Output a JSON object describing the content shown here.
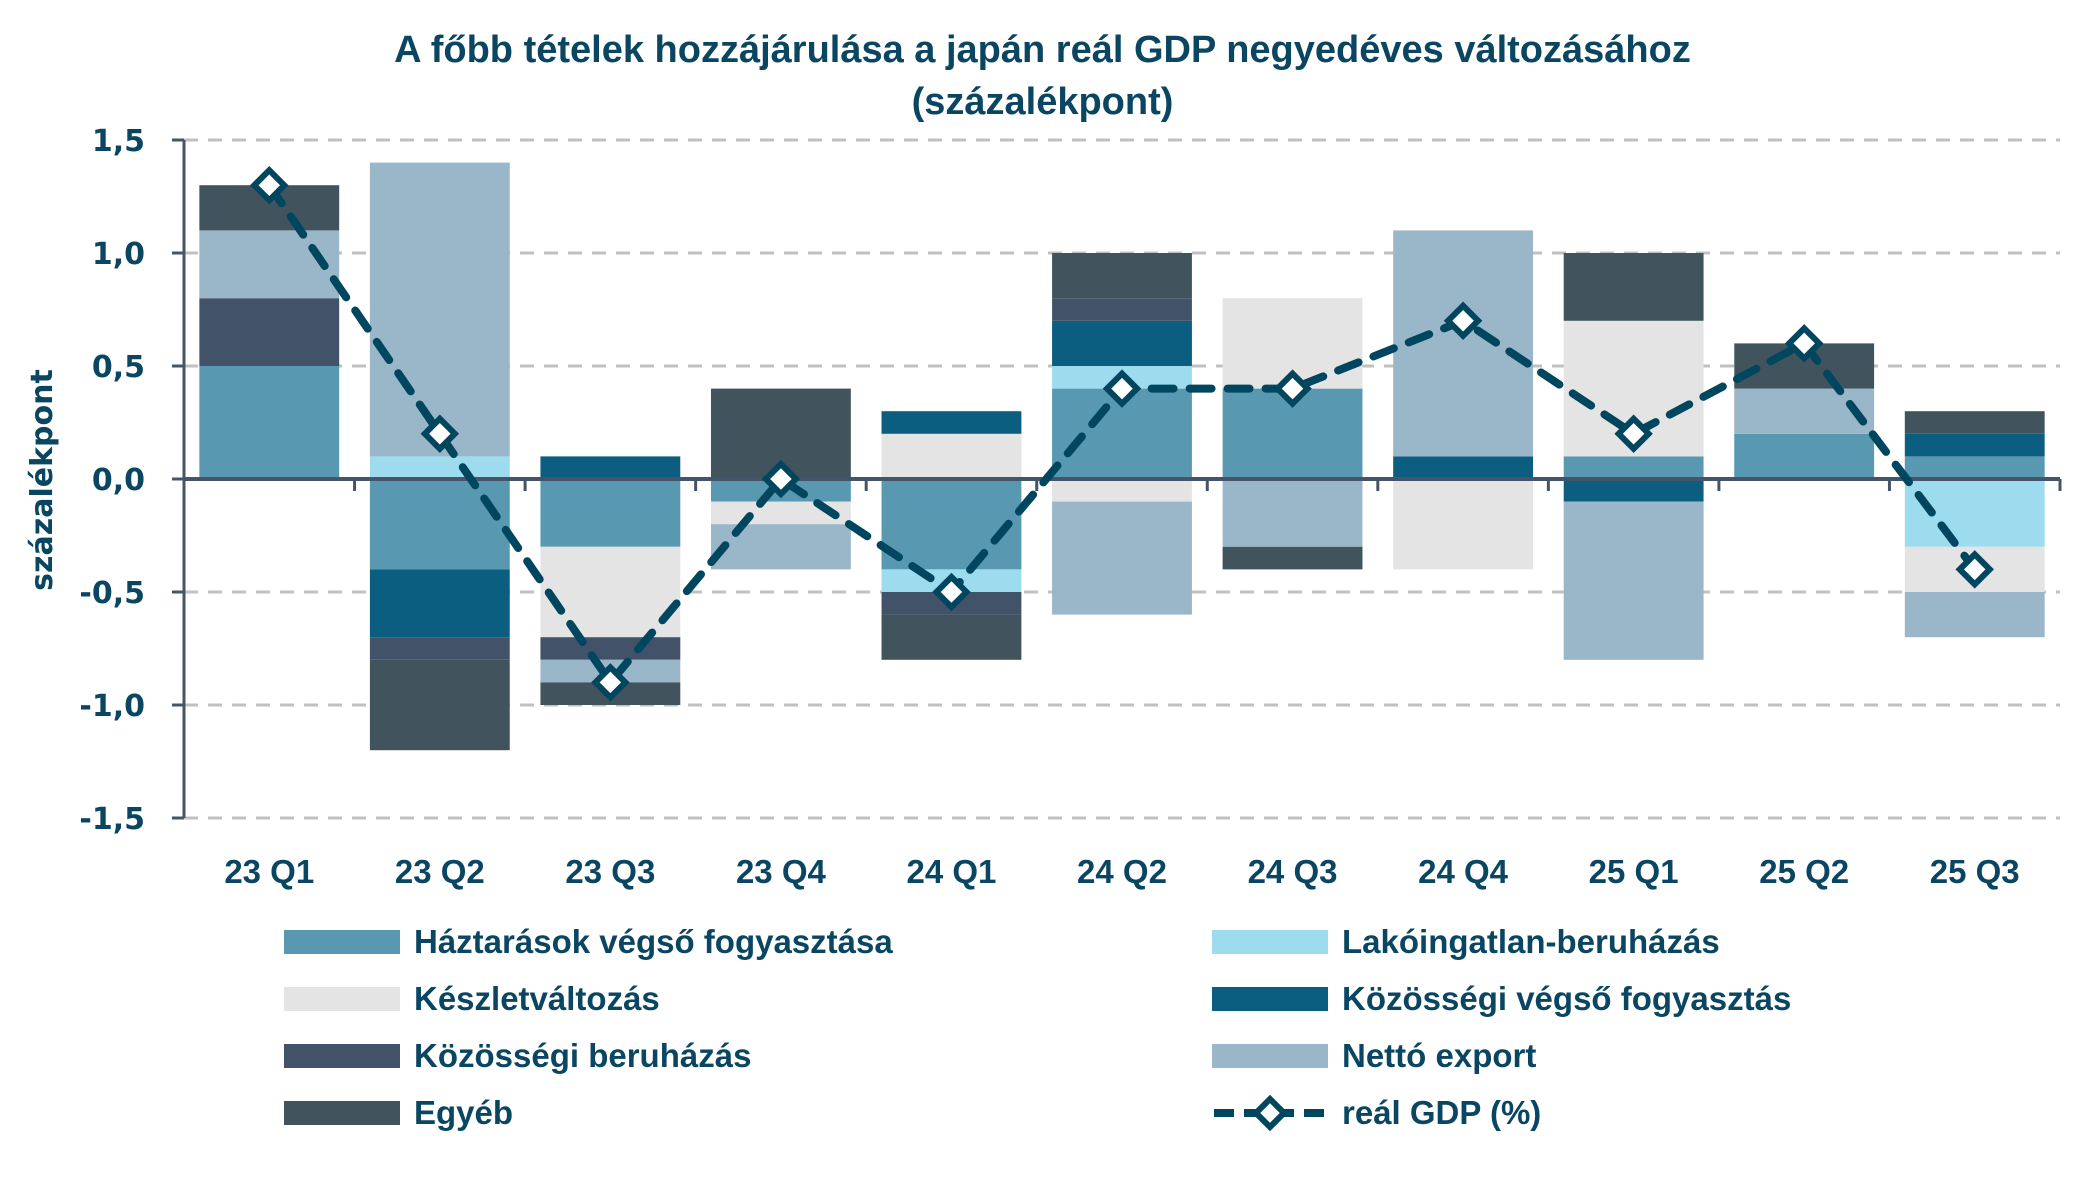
{
  "title_line1": "A főbb tételek hozzájárulása a japán reál GDP negyedéves változásához",
  "title_line2": "(százalékpont)",
  "chart_data": {
    "type": "bar",
    "stacked": true,
    "title": "A főbb tételek hozzájárulása a japán reál GDP negyedéves változásához (százalékpont)",
    "xlabel": "",
    "ylabel": "százalékpont",
    "ylim": [
      -1.5,
      1.5
    ],
    "yticks": [
      1.5,
      1.0,
      0.5,
      0.0,
      -0.5,
      -1.0,
      -1.5
    ],
    "ytick_labels": [
      "1,5",
      "1,0",
      "0,5",
      "0,0",
      "-0,5",
      "-1,0",
      "-1,5"
    ],
    "grid": "horizontal dashed",
    "legend_position": "bottom",
    "categories": [
      "23 Q1",
      "23 Q2",
      "23 Q3",
      "23 Q4",
      "24 Q1",
      "24 Q2",
      "24 Q3",
      "24 Q4",
      "25 Q1",
      "25 Q2",
      "25 Q3"
    ],
    "series": [
      {
        "name": "Háztarások végső fogyasztása",
        "color": "#5898b0",
        "values": [
          0.5,
          -0.4,
          -0.3,
          -0.1,
          -0.4,
          0.4,
          0.4,
          0.0,
          0.1,
          0.2,
          0.1
        ]
      },
      {
        "name": "Lakóingatlan-beruházás",
        "color": "#9cdcee",
        "values": [
          0.0,
          0.1,
          0.0,
          0.0,
          -0.1,
          0.1,
          0.0,
          0.0,
          0.0,
          0.0,
          -0.3
        ]
      },
      {
        "name": "Készletváltozás",
        "color": "#e4e4e4",
        "values": [
          0.0,
          0.0,
          -0.4,
          -0.1,
          0.2,
          -0.1,
          0.4,
          -0.4,
          0.6,
          0.0,
          -0.2
        ]
      },
      {
        "name": "Közösségi végső fogyasztás",
        "color": "#0b5e80",
        "values": [
          0.0,
          -0.3,
          0.1,
          0.0,
          0.1,
          0.2,
          0.0,
          0.1,
          -0.1,
          0.0,
          0.1
        ]
      },
      {
        "name": "Közösségi beruházás",
        "color": "#425369",
        "values": [
          0.3,
          -0.1,
          -0.1,
          0.0,
          -0.1,
          0.1,
          0.0,
          0.0,
          0.0,
          0.0,
          0.0
        ]
      },
      {
        "name": "Nettó export",
        "color": "#99b7c8",
        "values": [
          0.3,
          1.3,
          -0.1,
          -0.2,
          0.0,
          -0.5,
          -0.3,
          1.0,
          -0.7,
          0.2,
          -0.2
        ]
      },
      {
        "name": "Egyéb",
        "color": "#41545e",
        "values": [
          0.2,
          -0.4,
          -0.1,
          0.4,
          -0.2,
          0.2,
          -0.1,
          0.0,
          0.3,
          0.2,
          0.1
        ]
      }
    ],
    "line_series": {
      "name": "reál GDP (%)",
      "color": "#00465f",
      "values": [
        1.3,
        0.2,
        -0.9,
        0.0,
        -0.5,
        0.4,
        0.4,
        0.7,
        0.2,
        0.6,
        -0.4
      ]
    }
  },
  "legend": [
    {
      "label": "Háztarások végső fogyasztása",
      "color": "#5898b0",
      "kind": "bar"
    },
    {
      "label": "Lakóingatlan-beruházás",
      "color": "#9cdcee",
      "kind": "bar"
    },
    {
      "label": "Készletváltozás",
      "color": "#e4e4e4",
      "kind": "bar"
    },
    {
      "label": "Közösségi végső fogyasztás",
      "color": "#0b5e80",
      "kind": "bar"
    },
    {
      "label": "Közösségi beruházás",
      "color": "#425369",
      "kind": "bar"
    },
    {
      "label": "Nettó export",
      "color": "#99b7c8",
      "kind": "bar"
    },
    {
      "label": "Egyéb",
      "color": "#41545e",
      "kind": "bar"
    },
    {
      "label": "reál GDP (%)",
      "color": "#00465f",
      "kind": "line"
    }
  ]
}
